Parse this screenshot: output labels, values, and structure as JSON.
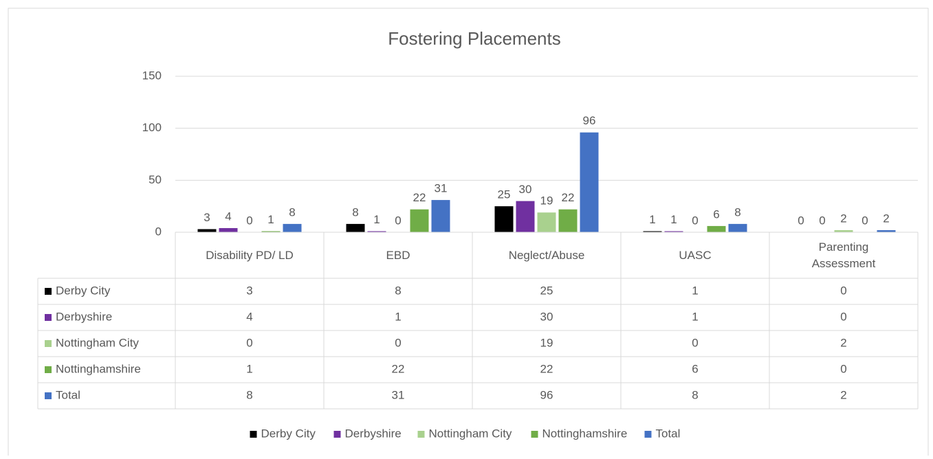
{
  "chart_data": {
    "type": "bar",
    "title": "Fostering Placements",
    "categories": [
      "Disability PD/ LD",
      "EBD",
      "Neglect/Abuse",
      "UASC",
      "Parenting Assessment"
    ],
    "series": [
      {
        "name": "Derby City",
        "color": "#000000",
        "values": [
          3,
          8,
          25,
          1,
          0
        ]
      },
      {
        "name": "Derbyshire",
        "color": "#7030a0",
        "values": [
          4,
          1,
          30,
          1,
          0
        ]
      },
      {
        "name": "Nottingham City",
        "color": "#a9d18e",
        "values": [
          0,
          0,
          19,
          0,
          2
        ]
      },
      {
        "name": "Nottinghamshire",
        "color": "#70ad47",
        "values": [
          1,
          22,
          22,
          6,
          0
        ]
      },
      {
        "name": "Total",
        "color": "#4472c4",
        "values": [
          8,
          31,
          96,
          8,
          2
        ]
      }
    ],
    "ylim": [
      0,
      150
    ],
    "yticks": [
      0,
      50,
      100,
      150
    ],
    "grid": true,
    "legend": "bottom"
  }
}
